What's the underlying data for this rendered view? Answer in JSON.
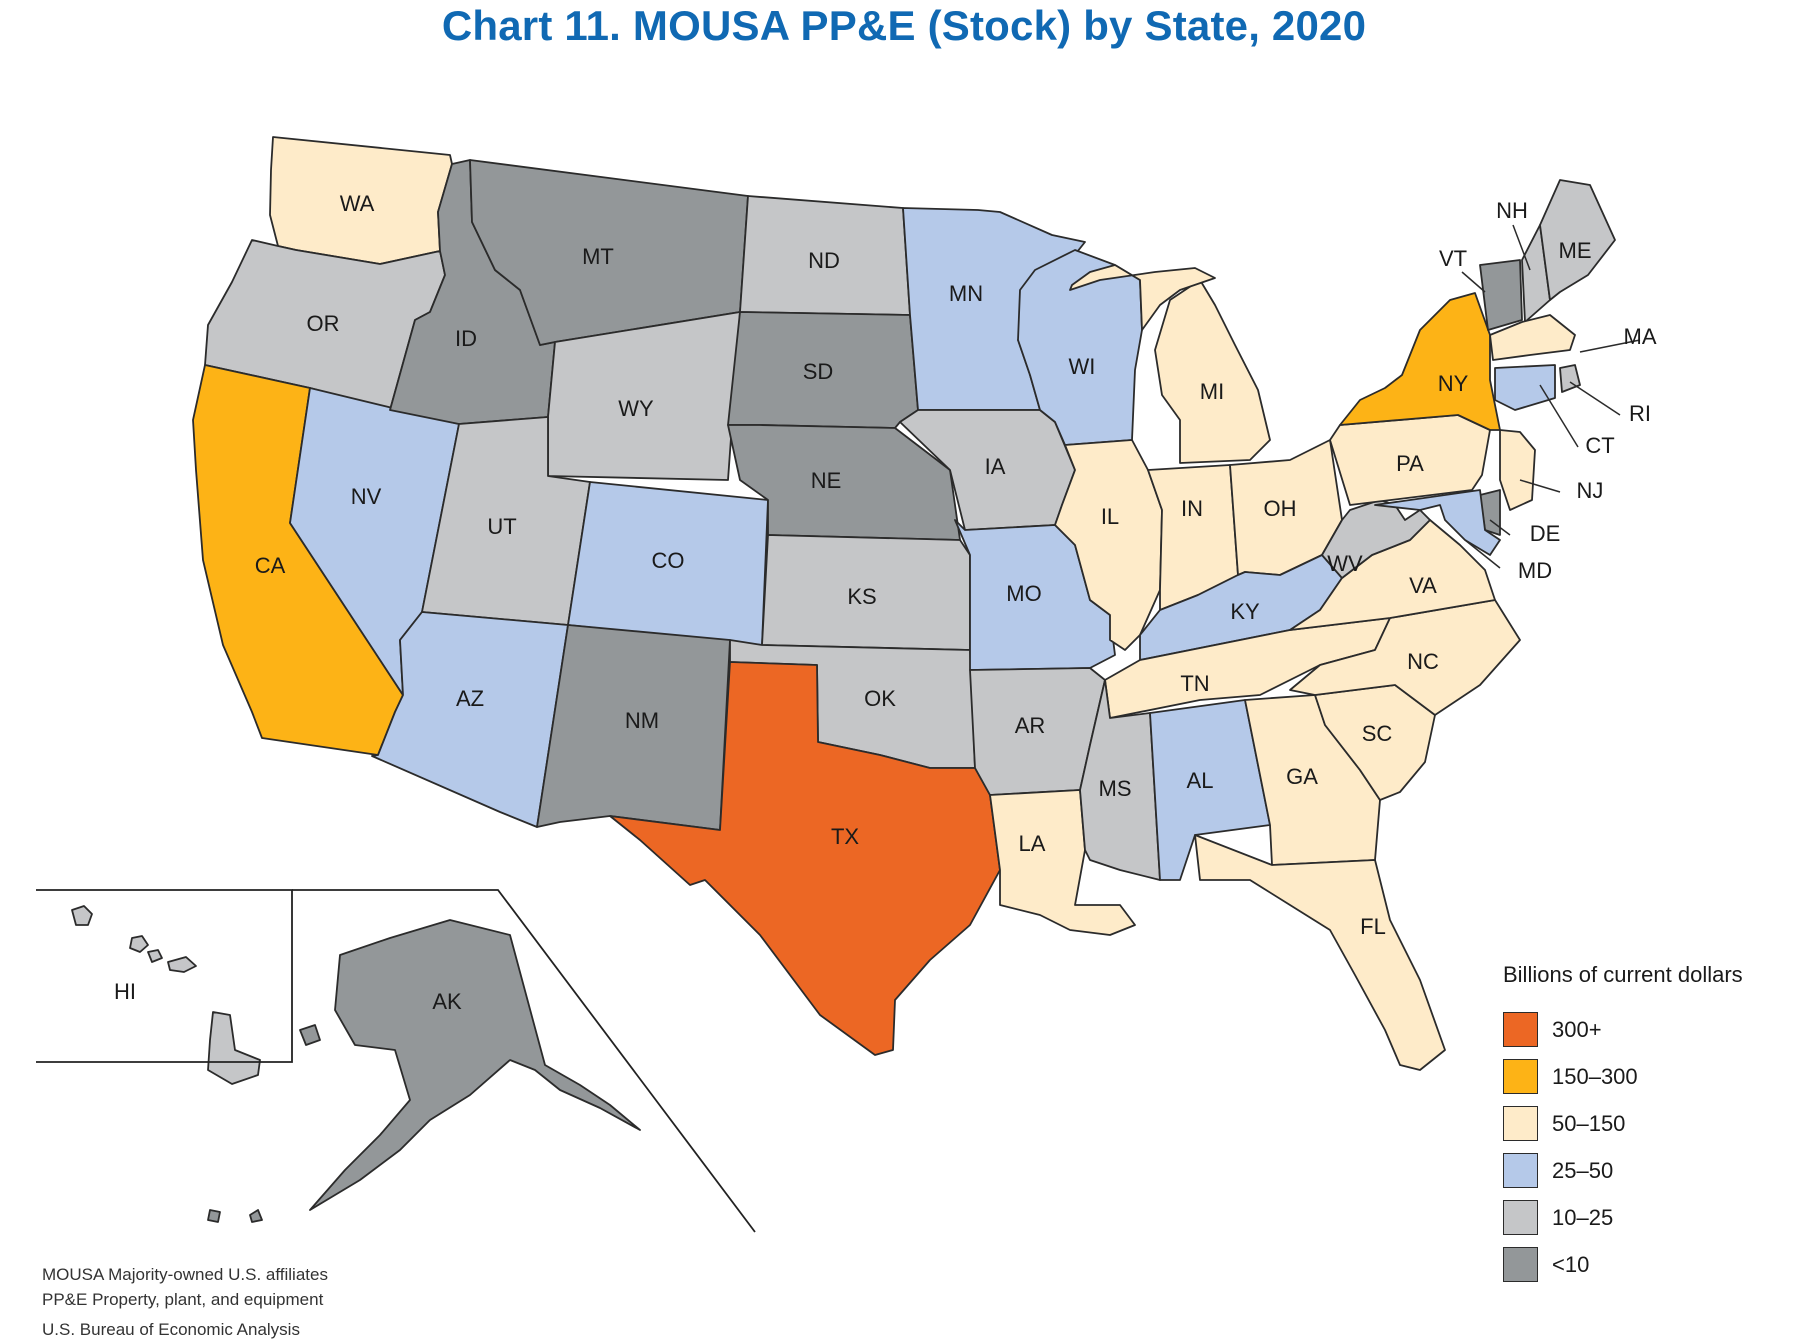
{
  "title": "Chart 11. MOUSA PP&E (Stock) by State, 2020",
  "legend": {
    "title": "Billions of current dollars",
    "bins": [
      {
        "label": "300+",
        "color": "#ec6724"
      },
      {
        "label": "150–300",
        "color": "#fdb316"
      },
      {
        "label": "50–150",
        "color": "#feebc9"
      },
      {
        "label": "25–50",
        "color": "#b5c9e9"
      },
      {
        "label": "10–25",
        "color": "#c5c6c8"
      },
      {
        "label": "<10",
        "color": "#939799"
      }
    ]
  },
  "states": [
    {
      "code": "WA",
      "label": "WA",
      "bin": "50–150"
    },
    {
      "code": "OR",
      "label": "OR",
      "bin": "10–25"
    },
    {
      "code": "CA",
      "label": "CA",
      "bin": "150–300"
    },
    {
      "code": "NV",
      "label": "NV",
      "bin": "25–50"
    },
    {
      "code": "ID",
      "label": "ID",
      "bin": "<10"
    },
    {
      "code": "MT",
      "label": "MT",
      "bin": "<10"
    },
    {
      "code": "WY",
      "label": "WY",
      "bin": "10–25"
    },
    {
      "code": "UT",
      "label": "UT",
      "bin": "10–25"
    },
    {
      "code": "AZ",
      "label": "AZ",
      "bin": "25–50"
    },
    {
      "code": "CO",
      "label": "CO",
      "bin": "25–50"
    },
    {
      "code": "NM",
      "label": "NM",
      "bin": "<10"
    },
    {
      "code": "ND",
      "label": "ND",
      "bin": "10–25"
    },
    {
      "code": "SD",
      "label": "SD",
      "bin": "<10"
    },
    {
      "code": "NE",
      "label": "NE",
      "bin": "<10"
    },
    {
      "code": "KS",
      "label": "KS",
      "bin": "10–25"
    },
    {
      "code": "OK",
      "label": "OK",
      "bin": "10–25"
    },
    {
      "code": "TX",
      "label": "TX",
      "bin": "300+"
    },
    {
      "code": "MN",
      "label": "MN",
      "bin": "25–50"
    },
    {
      "code": "IA",
      "label": "IA",
      "bin": "10–25"
    },
    {
      "code": "MO",
      "label": "MO",
      "bin": "25–50"
    },
    {
      "code": "AR",
      "label": "AR",
      "bin": "10–25"
    },
    {
      "code": "LA",
      "label": "LA",
      "bin": "50–150"
    },
    {
      "code": "WI",
      "label": "WI",
      "bin": "25–50"
    },
    {
      "code": "IL",
      "label": "IL",
      "bin": "50–150"
    },
    {
      "code": "MI",
      "label": "MI",
      "bin": "50–150"
    },
    {
      "code": "IN",
      "label": "IN",
      "bin": "50–150"
    },
    {
      "code": "OH",
      "label": "OH",
      "bin": "50–150"
    },
    {
      "code": "KY",
      "label": "KY",
      "bin": "25–50"
    },
    {
      "code": "TN",
      "label": "TN",
      "bin": "50–150"
    },
    {
      "code": "MS",
      "label": "MS",
      "bin": "10–25"
    },
    {
      "code": "AL",
      "label": "AL",
      "bin": "25–50"
    },
    {
      "code": "GA",
      "label": "GA",
      "bin": "50–150"
    },
    {
      "code": "FL",
      "label": "FL",
      "bin": "50–150"
    },
    {
      "code": "SC",
      "label": "SC",
      "bin": "50–150"
    },
    {
      "code": "NC",
      "label": "NC",
      "bin": "50–150"
    },
    {
      "code": "VA",
      "label": "VA",
      "bin": "50–150"
    },
    {
      "code": "WV",
      "label": "WV",
      "bin": "10–25"
    },
    {
      "code": "PA",
      "label": "PA",
      "bin": "50–150"
    },
    {
      "code": "NY",
      "label": "NY",
      "bin": "150–300"
    },
    {
      "code": "VT",
      "label": "VT",
      "bin": "<10"
    },
    {
      "code": "NH",
      "label": "NH",
      "bin": "10–25"
    },
    {
      "code": "ME",
      "label": "ME",
      "bin": "10–25"
    },
    {
      "code": "MA",
      "label": "MA",
      "bin": "50–150"
    },
    {
      "code": "RI",
      "label": "RI",
      "bin": "10–25"
    },
    {
      "code": "CT",
      "label": "CT",
      "bin": "25–50"
    },
    {
      "code": "NJ",
      "label": "NJ",
      "bin": "50–150"
    },
    {
      "code": "DE",
      "label": "DE",
      "bin": "<10"
    },
    {
      "code": "MD",
      "label": "MD",
      "bin": "25–50"
    },
    {
      "code": "AK",
      "label": "AK",
      "bin": "<10"
    },
    {
      "code": "HI",
      "label": "HI",
      "bin": "10–25"
    }
  ],
  "notes": [
    "MOUSA  Majority-owned U.S. affiliates",
    "PP&E  Property, plant, and equipment"
  ],
  "source": "U.S. Bureau of Economic Analysis"
}
